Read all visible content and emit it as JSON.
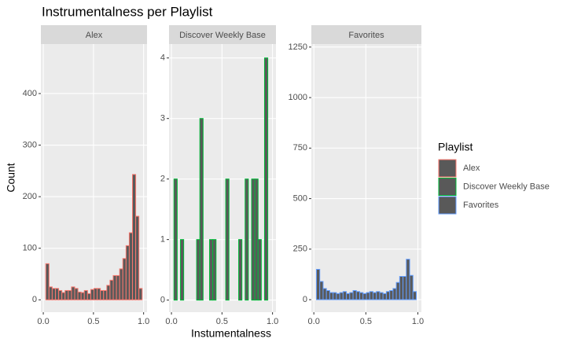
{
  "title": "Instrumentalness per Playlist",
  "x_label": "Instumentalness",
  "y_label": "Count",
  "legend": {
    "title": "Playlist"
  },
  "chart_data": [
    {
      "type": "histogram",
      "title": "Alex",
      "color": "#f8766d",
      "fill": "#595959",
      "bins": [
        0.025,
        0.057,
        0.089,
        0.121,
        0.153,
        0.185,
        0.217,
        0.249,
        0.281,
        0.313,
        0.345,
        0.377,
        0.409,
        0.441,
        0.473,
        0.505,
        0.537,
        0.569,
        0.601,
        0.633,
        0.665,
        0.697,
        0.729,
        0.761,
        0.793,
        0.825,
        0.857,
        0.889,
        0.921,
        0.953,
        0.985
      ],
      "values": [
        70,
        25,
        22,
        22,
        18,
        14,
        18,
        18,
        25,
        22,
        15,
        14,
        18,
        12,
        20,
        22,
        22,
        18,
        18,
        28,
        38,
        47,
        47,
        60,
        80,
        105,
        130,
        243,
        162,
        22
      ],
      "xlim": [
        -0.024,
        1.034
      ],
      "xticks": [
        {
          "value": 0,
          "label": "0.0"
        },
        0.5,
        {
          "value": 1,
          "label": "1.0"
        }
      ],
      "ylim": [
        -24,
        496
      ],
      "yticks": [
        0,
        100,
        200,
        300,
        400
      ],
      "grid": true
    },
    {
      "type": "histogram",
      "title": "Discover Weekly Base",
      "color": "#00ba38",
      "fill": "#595959",
      "bins": [
        0.025,
        0.057,
        0.089,
        0.121,
        0.153,
        0.185,
        0.217,
        0.249,
        0.281,
        0.313,
        0.345,
        0.377,
        0.409,
        0.441,
        0.473,
        0.505,
        0.537,
        0.569,
        0.601,
        0.633,
        0.665,
        0.697,
        0.729,
        0.761,
        0.793,
        0.825,
        0.857,
        0.889,
        0.921,
        0.953,
        0.985
      ],
      "values": [
        2,
        0,
        1,
        0,
        0,
        0,
        0,
        1,
        3,
        0,
        0,
        1,
        1,
        0,
        0,
        0,
        2,
        0,
        0,
        0,
        1,
        0,
        2,
        0,
        2,
        2,
        1,
        0,
        4,
        0
      ],
      "xlim": [
        -0.024,
        1.034
      ],
      "xticks": [
        {
          "value": 0,
          "label": "0.0"
        },
        0.5,
        {
          "value": 1,
          "label": "1.0"
        }
      ],
      "ylim": [
        -0.2,
        4.23
      ],
      "yticks": [
        0,
        1,
        2,
        3,
        4
      ],
      "grid": true
    },
    {
      "type": "histogram",
      "title": "Favorites",
      "color": "#619cff",
      "fill": "#595959",
      "bins": [
        0.025,
        0.057,
        0.089,
        0.121,
        0.153,
        0.185,
        0.217,
        0.249,
        0.281,
        0.313,
        0.345,
        0.377,
        0.409,
        0.441,
        0.473,
        0.505,
        0.537,
        0.569,
        0.601,
        0.633,
        0.665,
        0.697,
        0.729,
        0.761,
        0.793,
        0.825,
        0.857,
        0.889,
        0.921,
        0.953,
        0.985
      ],
      "values": [
        150,
        90,
        55,
        45,
        35,
        35,
        30,
        35,
        40,
        30,
        35,
        45,
        40,
        35,
        30,
        35,
        40,
        35,
        40,
        35,
        30,
        40,
        45,
        55,
        85,
        115,
        115,
        200,
        120,
        40
      ],
      "xlim": [
        -0.024,
        1.034
      ],
      "xticks": [
        {
          "value": 0,
          "label": "0.0"
        },
        0.5,
        {
          "value": 1,
          "label": "1.0"
        }
      ],
      "ylim": [
        -62,
        1265
      ],
      "yticks": [
        0,
        250,
        500,
        750,
        1000,
        1250
      ],
      "grid": true
    }
  ]
}
